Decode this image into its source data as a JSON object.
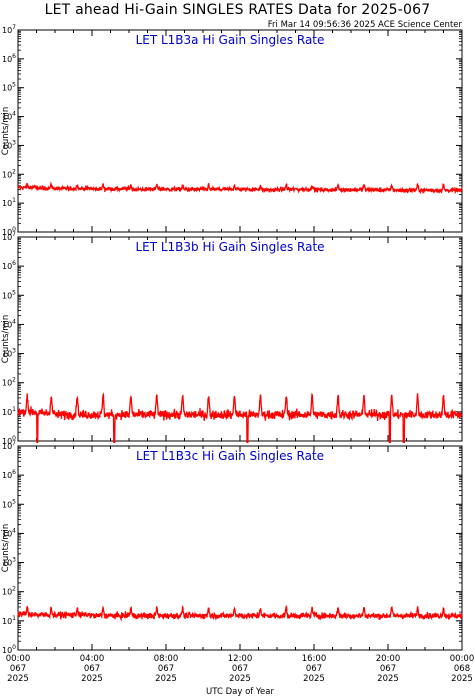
{
  "header": {
    "title": "LET ahead Hi-Gain SINGLES RATES Data for 2025-067",
    "timestamp": "Fri Mar 14 09:56:36 2025 ACE Science Center"
  },
  "colors": {
    "series": "#ff0000",
    "panel_title": "#0000cc",
    "axis": "#000000"
  },
  "chart_data": [
    {
      "type": "line",
      "title": "LET L1B3a Hi Gain Singles Rate",
      "ylabel": "Counts/min",
      "yscale": "log",
      "ylim": [
        1,
        10000000
      ],
      "xlim_hours": [
        0,
        24
      ],
      "baseline": 30,
      "noise_decades": 0.07,
      "spike_peak": 45,
      "dips": [],
      "series": [
        {
          "name": "",
          "values_hourly_approx": [
            35,
            33,
            32,
            32,
            31,
            31,
            30,
            31,
            30,
            30,
            30,
            30,
            30,
            29,
            30,
            30,
            29,
            29,
            29,
            29,
            28,
            28,
            28,
            28,
            28
          ]
        }
      ]
    },
    {
      "type": "line",
      "title": "LET L1B3b Hi Gain Singles Rate",
      "ylabel": "Counts/min",
      "yscale": "log",
      "ylim": [
        1,
        10000000
      ],
      "xlim_hours": [
        0,
        24
      ],
      "baseline": 8,
      "noise_decades": 0.15,
      "spike_peak": 40,
      "dips": [
        1.05,
        5.2,
        12.4,
        20.1,
        20.85
      ],
      "series": [
        {
          "name": "",
          "values_hourly_approx": [
            10,
            9,
            8,
            8,
            8,
            8,
            8,
            8,
            8,
            8,
            8,
            8,
            8,
            8,
            8,
            8,
            8,
            8,
            8,
            8,
            8,
            8,
            8,
            8,
            8
          ]
        }
      ]
    },
    {
      "type": "line",
      "title": "LET L1B3c Hi Gain Singles Rate",
      "ylabel": "Counts/min",
      "yscale": "log",
      "ylim": [
        1,
        10000000
      ],
      "xlim_hours": [
        0,
        24
      ],
      "baseline": 15,
      "noise_decades": 0.1,
      "spike_peak": 30,
      "dips": [],
      "series": [
        {
          "name": "",
          "values_hourly_approx": [
            17,
            16,
            16,
            16,
            15,
            15,
            15,
            15,
            15,
            15,
            15,
            15,
            15,
            15,
            15,
            15,
            15,
            15,
            15,
            15,
            15,
            15,
            15,
            15,
            15
          ]
        }
      ]
    }
  ],
  "y_ticks": [
    "10^0",
    "10^1",
    "10^2",
    "10^3",
    "10^4",
    "10^5",
    "10^6",
    "10^7"
  ],
  "x_ticks": [
    {
      "time": "00:00",
      "day": "067",
      "year": "2025"
    },
    {
      "time": "04:00",
      "day": "067",
      "year": "2025"
    },
    {
      "time": "08:00",
      "day": "067",
      "year": "2025"
    },
    {
      "time": "12:00",
      "day": "067",
      "year": "2025"
    },
    {
      "time": "16:00",
      "day": "067",
      "year": "2025"
    },
    {
      "time": "20:00",
      "day": "067",
      "year": "2025"
    },
    {
      "time": "00:00",
      "day": "068",
      "year": "2025"
    }
  ],
  "x_axis_label": "UTC Day of Year",
  "spike_times_hours": [
    0.5,
    1.8,
    3.2,
    4.6,
    6.1,
    7.5,
    8.9,
    10.3,
    11.7,
    13.1,
    14.5,
    15.9,
    17.3,
    18.7,
    20.2,
    21.6,
    23.0
  ]
}
